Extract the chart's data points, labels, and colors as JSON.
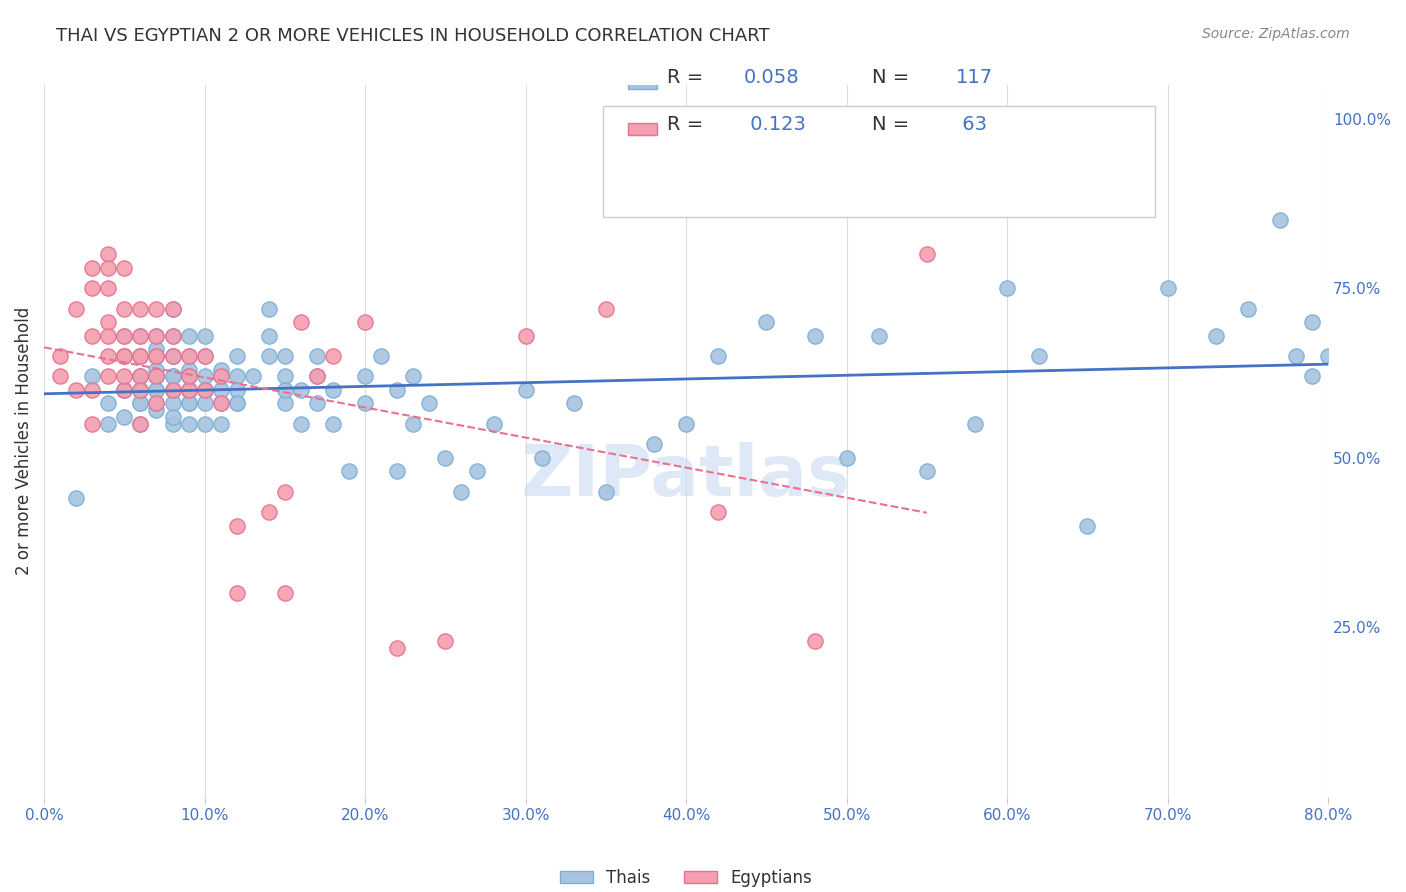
{
  "title": "THAI VS EGYPTIAN 2 OR MORE VEHICLES IN HOUSEHOLD CORRELATION CHART",
  "source": "Source: ZipAtlas.com",
  "xlabel_bottom": "",
  "ylabel": "2 or more Vehicles in Household",
  "x_tick_labels": [
    "0.0%",
    "80.0%"
  ],
  "y_tick_labels_right": [
    "100.0%",
    "75.0%",
    "50.0%",
    "25.0%"
  ],
  "legend_r1": "R = 0.058",
  "legend_n1": "N = 117",
  "legend_r2": "R = 0.123",
  "legend_n2": "N = 63",
  "thai_color": "#a8c4e0",
  "thai_edge_color": "#7bafd4",
  "egyptian_color": "#f4a0b0",
  "egyptian_edge_color": "#e87090",
  "thai_line_color": "#4472c4",
  "egyptian_line_color": "#e87090",
  "watermark": "ZIPatlas",
  "watermark_color": "#c8daf0",
  "background_color": "#ffffff",
  "grid_color": "#dddddd",
  "title_color": "#333333",
  "source_color": "#888888",
  "axis_label_color": "#333333",
  "right_tick_color": "#4472c4",
  "bottom_tick_color": "#4472c4",
  "thai_R": 0.058,
  "thai_N": 117,
  "egyptian_R": 0.123,
  "egyptian_N": 63,
  "x_lim": [
    0.0,
    0.8
  ],
  "y_lim": [
    0.0,
    1.05
  ],
  "thai_scatter_x": [
    0.02,
    0.03,
    0.04,
    0.04,
    0.05,
    0.05,
    0.05,
    0.05,
    0.05,
    0.06,
    0.06,
    0.06,
    0.06,
    0.06,
    0.06,
    0.06,
    0.06,
    0.06,
    0.07,
    0.07,
    0.07,
    0.07,
    0.07,
    0.07,
    0.07,
    0.07,
    0.07,
    0.07,
    0.08,
    0.08,
    0.08,
    0.08,
    0.08,
    0.08,
    0.08,
    0.08,
    0.08,
    0.08,
    0.08,
    0.09,
    0.09,
    0.09,
    0.09,
    0.09,
    0.09,
    0.09,
    0.09,
    0.09,
    0.09,
    0.1,
    0.1,
    0.1,
    0.1,
    0.1,
    0.1,
    0.11,
    0.11,
    0.11,
    0.11,
    0.11,
    0.12,
    0.12,
    0.12,
    0.12,
    0.12,
    0.13,
    0.14,
    0.14,
    0.14,
    0.15,
    0.15,
    0.15,
    0.15,
    0.16,
    0.16,
    0.17,
    0.17,
    0.17,
    0.18,
    0.18,
    0.19,
    0.2,
    0.2,
    0.21,
    0.22,
    0.22,
    0.23,
    0.23,
    0.24,
    0.25,
    0.26,
    0.27,
    0.28,
    0.3,
    0.31,
    0.33,
    0.35,
    0.38,
    0.4,
    0.42,
    0.45,
    0.48,
    0.5,
    0.52,
    0.55,
    0.58,
    0.6,
    0.62,
    0.65,
    0.7,
    0.73,
    0.75,
    0.77,
    0.78,
    0.79,
    0.79,
    0.8
  ],
  "thai_scatter_y": [
    0.44,
    0.62,
    0.55,
    0.58,
    0.6,
    0.65,
    0.68,
    0.6,
    0.56,
    0.62,
    0.58,
    0.6,
    0.55,
    0.65,
    0.68,
    0.62,
    0.58,
    0.6,
    0.62,
    0.65,
    0.6,
    0.57,
    0.63,
    0.58,
    0.68,
    0.62,
    0.66,
    0.6,
    0.55,
    0.6,
    0.65,
    0.58,
    0.62,
    0.68,
    0.72,
    0.6,
    0.56,
    0.62,
    0.65,
    0.6,
    0.63,
    0.58,
    0.65,
    0.6,
    0.55,
    0.68,
    0.62,
    0.58,
    0.6,
    0.62,
    0.58,
    0.65,
    0.6,
    0.55,
    0.68,
    0.62,
    0.58,
    0.6,
    0.63,
    0.55,
    0.62,
    0.58,
    0.65,
    0.6,
    0.58,
    0.62,
    0.65,
    0.68,
    0.72,
    0.62,
    0.58,
    0.6,
    0.65,
    0.6,
    0.55,
    0.62,
    0.58,
    0.65,
    0.6,
    0.55,
    0.48,
    0.62,
    0.58,
    0.65,
    0.6,
    0.48,
    0.62,
    0.55,
    0.58,
    0.5,
    0.45,
    0.48,
    0.55,
    0.6,
    0.5,
    0.58,
    0.45,
    0.52,
    0.55,
    0.65,
    0.7,
    0.68,
    0.5,
    0.68,
    0.48,
    0.55,
    0.75,
    0.65,
    0.4,
    0.75,
    0.68,
    0.72,
    0.85,
    0.65,
    0.7,
    0.62,
    0.65
  ],
  "egyptian_scatter_x": [
    0.01,
    0.01,
    0.02,
    0.02,
    0.03,
    0.03,
    0.03,
    0.03,
    0.03,
    0.04,
    0.04,
    0.04,
    0.04,
    0.04,
    0.04,
    0.04,
    0.05,
    0.05,
    0.05,
    0.05,
    0.05,
    0.05,
    0.05,
    0.06,
    0.06,
    0.06,
    0.06,
    0.06,
    0.06,
    0.06,
    0.07,
    0.07,
    0.07,
    0.07,
    0.07,
    0.07,
    0.08,
    0.08,
    0.08,
    0.08,
    0.09,
    0.09,
    0.09,
    0.1,
    0.1,
    0.11,
    0.11,
    0.12,
    0.12,
    0.14,
    0.15,
    0.15,
    0.16,
    0.17,
    0.18,
    0.2,
    0.22,
    0.25,
    0.3,
    0.35,
    0.42,
    0.48,
    0.55
  ],
  "egyptian_scatter_y": [
    0.62,
    0.65,
    0.6,
    0.72,
    0.68,
    0.75,
    0.78,
    0.6,
    0.55,
    0.65,
    0.7,
    0.68,
    0.62,
    0.8,
    0.75,
    0.78,
    0.68,
    0.72,
    0.65,
    0.78,
    0.6,
    0.62,
    0.65,
    0.65,
    0.62,
    0.68,
    0.72,
    0.6,
    0.65,
    0.55,
    0.68,
    0.65,
    0.72,
    0.62,
    0.58,
    0.65,
    0.68,
    0.72,
    0.65,
    0.6,
    0.6,
    0.65,
    0.62,
    0.6,
    0.65,
    0.62,
    0.58,
    0.4,
    0.3,
    0.42,
    0.45,
    0.3,
    0.7,
    0.62,
    0.65,
    0.7,
    0.22,
    0.23,
    0.68,
    0.72,
    0.42,
    0.23,
    0.8
  ]
}
